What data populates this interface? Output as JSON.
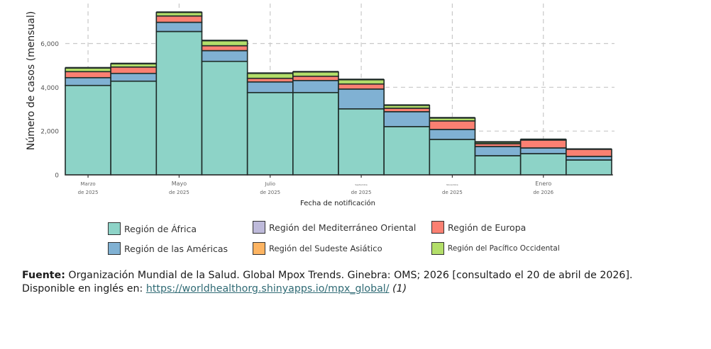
{
  "chart_data": {
    "type": "bar",
    "stacked": true,
    "title": "",
    "xlabel": "Fecha de notificación",
    "ylabel": "Número de casos (mensual)",
    "ylim": [
      0,
      7600
    ],
    "yticks": [
      0,
      2000,
      4000,
      6000
    ],
    "ytick_labels": [
      "0",
      "2,000",
      "4,000",
      "6,000"
    ],
    "grid": true,
    "categories": [
      "Mar 2025",
      "Abr 2025",
      "May 2025",
      "Jun 2025",
      "Jul 2025",
      "Ago 2025",
      "Sep 2025",
      "Oct 2025",
      "Nov 2025",
      "Dic 2025",
      "Ene 2026",
      "Feb 2026"
    ],
    "xtick_labels": [
      {
        "category_index": 0,
        "month": "Marzo",
        "year": "de 2025"
      },
      {
        "category_index": 2,
        "month": "Mayo",
        "year": "de 2025"
      },
      {
        "category_index": 4,
        "month": "Julio",
        "year": "de 2025"
      },
      {
        "category_index": 6,
        "month": "Septiembre",
        "year": "de 2025"
      },
      {
        "category_index": 8,
        "month": "Noviembre",
        "year": "de 2025"
      },
      {
        "category_index": 10,
        "month": "Enero",
        "year": "de 2026"
      }
    ],
    "series": [
      {
        "name": "Región de África",
        "color": "#8DD3C7",
        "values": [
          4085,
          4280,
          6550,
          5185,
          3760,
          3760,
          3015,
          2205,
          1620,
          875,
          970,
          680
        ]
      },
      {
        "name": "Región de las Américas",
        "color": "#80B1D3",
        "values": [
          355,
          355,
          420,
          490,
          485,
          550,
          905,
          680,
          455,
          420,
          260,
          165
        ]
      },
      {
        "name": "Región del Mediterráneo Oriental",
        "color": "#BEBADA",
        "values": [
          0,
          0,
          0,
          0,
          0,
          0,
          0,
          0,
          0,
          0,
          0,
          0
        ]
      },
      {
        "name": "Región de Europa",
        "color": "#FB8072",
        "values": [
          275,
          290,
          290,
          225,
          165,
          195,
          230,
          160,
          390,
          130,
          360,
          320
        ]
      },
      {
        "name": "Región del Sudeste Asiático",
        "color": "#FDB462",
        "values": [
          0,
          0,
          0,
          0,
          0,
          0,
          0,
          0,
          0,
          0,
          0,
          0
        ]
      },
      {
        "name": "Región del Pacífico Occidental",
        "color": "#B3DE69",
        "values": [
          165,
          150,
          160,
          225,
          225,
          195,
          195,
          130,
          130,
          65,
          20,
          0
        ]
      }
    ],
    "legend_position": "bottom",
    "legend": [
      {
        "label": "Región de África",
        "color": "#8DD3C7"
      },
      {
        "label": "Región del Mediterráneo Oriental",
        "color": "#BEBADA"
      },
      {
        "label": "Región de Europa",
        "color": "#FB8072"
      },
      {
        "label": "Región de las Américas",
        "color": "#80B1D3"
      },
      {
        "label": "Región del Sudeste Asiático",
        "color": "#FDB462"
      },
      {
        "label": "Región del Pacífico Occidental",
        "color": "#B3DE69"
      }
    ]
  },
  "source": {
    "label": "Fuente:",
    "text": " Organización Mundial de la Salud. Global Mpox Trends. Ginebra: OMS; 2026 [consultado el 20 de abril de 2026]. Disponible en inglés en: ",
    "link": "https://worldhealthorg.shinyapps.io/mpx_global/",
    "ref": " (1)"
  }
}
